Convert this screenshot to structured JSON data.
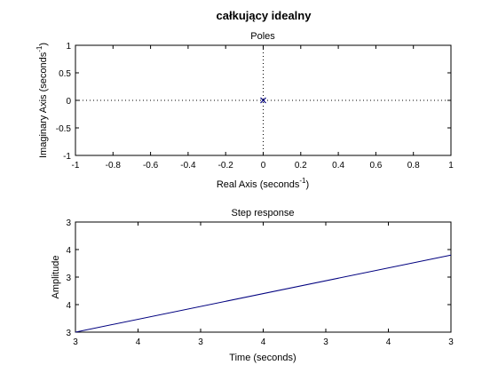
{
  "figure_title": "całkujący idealny",
  "colors": {
    "background": "#ffffff",
    "axes": "#000000",
    "series": "#00007f",
    "grid": "#000000"
  },
  "chart_data": [
    {
      "type": "scatter",
      "title": "Poles",
      "xlabel": "Real Axis (seconds",
      "xlabel_sup": "-1",
      "xlabel_end": ")",
      "ylabel": "Imaginary Axis (seconds",
      "ylabel_sup": "-1",
      "ylabel_end": ")",
      "xlim": [
        -1,
        1
      ],
      "ylim": [
        -1,
        1
      ],
      "x_ticks": [
        -1,
        -0.8,
        -0.6,
        -0.4,
        -0.2,
        0,
        0.2,
        0.4,
        0.6,
        0.8,
        1
      ],
      "x_tick_labels": [
        "-1",
        "-0.8",
        "-0.6",
        "-0.4",
        "-0.2",
        "0",
        "0.2",
        "0.4",
        "0.6",
        "0.8",
        "1"
      ],
      "y_ticks": [
        -1,
        -0.5,
        0,
        0.5,
        1
      ],
      "y_tick_labels": [
        "-1",
        "-0.5",
        "0",
        "0.5",
        "1"
      ],
      "marker": "x",
      "points": [
        {
          "x": 0,
          "y": 0
        }
      ],
      "zero_lines": true
    },
    {
      "type": "line",
      "title": "Step response",
      "xlabel": "Time (seconds)",
      "ylabel": "Amplitude",
      "x_tick_labels": [
        "3",
        "4",
        "3",
        "4",
        "3",
        "4",
        "3"
      ],
      "y_tick_labels": [
        "3",
        "4",
        "3",
        "4",
        "3"
      ],
      "x": [
        0,
        1
      ],
      "y": [
        0,
        0.7
      ]
    }
  ]
}
